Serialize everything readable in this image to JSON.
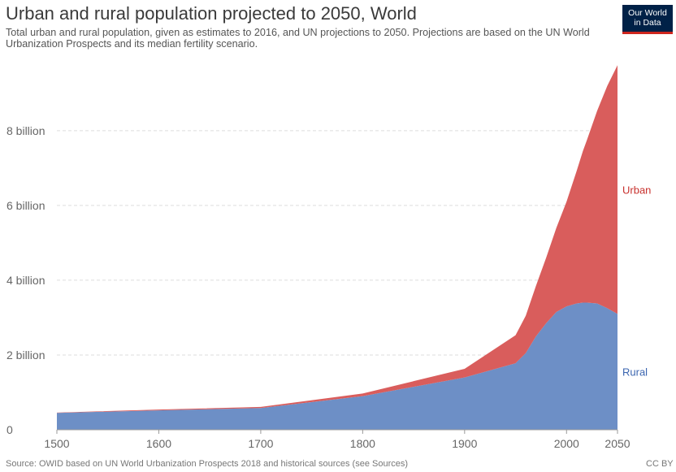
{
  "header": {
    "title": "Urban and rural population projected to 2050, World",
    "subtitle": "Total urban and rural population, given as estimates to 2016, and UN projections to 2050. Projections are based on the UN World Urbanization Prospects and its median fertility scenario."
  },
  "logo": {
    "line1": "Our World",
    "line2": "in Data",
    "bg": "#002147",
    "accent": "#ce261e"
  },
  "footer": {
    "source": "Source: OWID based on UN World Urbanization Prospects 2018 and historical sources (see Sources)",
    "license": "CC BY"
  },
  "chart_data": {
    "type": "area",
    "stacked": true,
    "x": [
      1500,
      1600,
      1700,
      1800,
      1850,
      1900,
      1950,
      1960,
      1970,
      1980,
      1990,
      2000,
      2010,
      2016,
      2020,
      2030,
      2040,
      2050
    ],
    "series": [
      {
        "name": "Rural",
        "color": "#6d8fc6",
        "values": [
          0.45,
          0.52,
          0.58,
          0.9,
          1.15,
          1.4,
          1.78,
          2.05,
          2.5,
          2.85,
          3.15,
          3.3,
          3.38,
          3.4,
          3.4,
          3.38,
          3.25,
          3.1
        ]
      },
      {
        "name": "Urban",
        "color": "#d95d5c",
        "values": [
          0.01,
          0.02,
          0.03,
          0.07,
          0.15,
          0.23,
          0.75,
          1.0,
          1.35,
          1.75,
          2.25,
          2.8,
          3.55,
          4.05,
          4.35,
          5.15,
          5.95,
          6.65
        ]
      }
    ],
    "xticks": [
      {
        "value": 1500,
        "label": "1500"
      },
      {
        "value": 1600,
        "label": "1600"
      },
      {
        "value": 1700,
        "label": "1700"
      },
      {
        "value": 1800,
        "label": "1800"
      },
      {
        "value": 1900,
        "label": "1900"
      },
      {
        "value": 2000,
        "label": "2000"
      },
      {
        "value": 2050,
        "label": "2050"
      }
    ],
    "yticks": [
      {
        "value": 0,
        "label": "0"
      },
      {
        "value": 2,
        "label": "2 billion"
      },
      {
        "value": 4,
        "label": "4 billion"
      },
      {
        "value": 6,
        "label": "6 billion"
      },
      {
        "value": 8,
        "label": "8 billion"
      }
    ],
    "ylim": [
      0,
      9.8
    ],
    "xlim": [
      1500,
      2050
    ],
    "grid": "horizontal dashed",
    "legend": "inline-right",
    "unit": "billion"
  }
}
